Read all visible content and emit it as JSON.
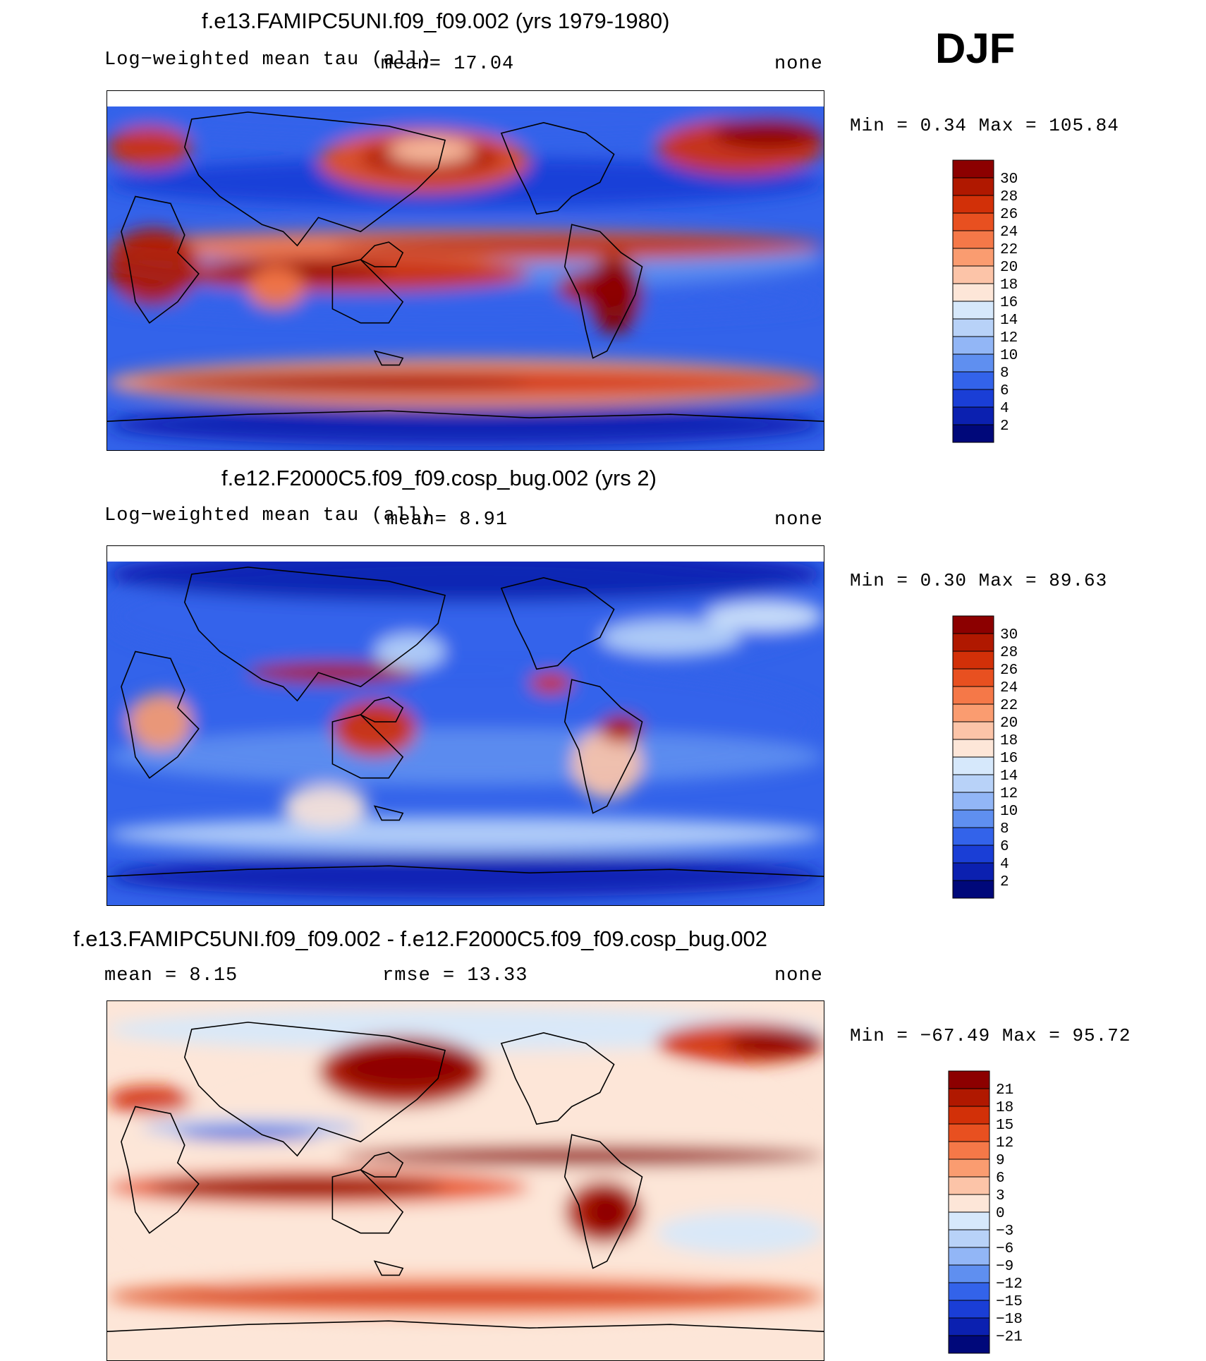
{
  "season": "DJF",
  "panels": [
    {
      "id": "top",
      "title": "f.e13.FAMIPC5UNI.f09_f09.002 (yrs 1979-1980)",
      "left_label": "Log−weighted mean tau (all)",
      "mean_label": "mean=   17.04",
      "right_label": "none",
      "minmax": "Min =    0.34 Max = 105.84",
      "colorbar": {
        "labels": [
          "30",
          "28",
          "26",
          "24",
          "22",
          "20",
          "18",
          "16",
          "14",
          "12",
          "10",
          "8",
          "6",
          "4",
          "2"
        ],
        "colors": [
          "#8c0000",
          "#b01800",
          "#d23008",
          "#e85020",
          "#f57848",
          "#fa9c70",
          "#fcc4a8",
          "#fde6d8",
          "#d6e8fb",
          "#b8d2f8",
          "#92b6f6",
          "#5f8ff0",
          "#3363ea",
          "#1a3ed6",
          "#0b20b0",
          "#00087a"
        ]
      },
      "palette": "full"
    },
    {
      "id": "middle",
      "title": "f.e12.F2000C5.f09_f09.cosp_bug.002 (yrs 2)",
      "left_label": "Log−weighted mean tau (all)",
      "mean_label": "mean=    8.91",
      "right_label": "none",
      "minmax": "Min =    0.30 Max =   89.63",
      "colorbar": {
        "labels": [
          "30",
          "28",
          "26",
          "24",
          "22",
          "20",
          "18",
          "16",
          "14",
          "12",
          "10",
          "8",
          "6",
          "4",
          "2"
        ],
        "colors": [
          "#8c0000",
          "#b01800",
          "#d23008",
          "#e85020",
          "#f57848",
          "#fa9c70",
          "#fcc4a8",
          "#fde6d8",
          "#d6e8fb",
          "#b8d2f8",
          "#92b6f6",
          "#5f8ff0",
          "#3363ea",
          "#1a3ed6",
          "#0b20b0",
          "#00087a"
        ]
      },
      "palette": "blue"
    },
    {
      "id": "bottom",
      "title": "f.e13.FAMIPC5UNI.f09_f09.002 - f.e12.F2000C5.f09_f09.cosp_bug.002",
      "left_label": "mean =    8.15",
      "mean_label": "rmse =   13.33",
      "right_label": "none",
      "minmax": "Min = −67.49 Max =   95.72",
      "colorbar": {
        "labels": [
          "21",
          "18",
          "15",
          "12",
          "9",
          "6",
          "3",
          "0",
          "−3",
          "−6",
          "−9",
          "−12",
          "−15",
          "−18",
          "−21"
        ],
        "colors": [
          "#8c0000",
          "#b01800",
          "#d23008",
          "#e85020",
          "#f57848",
          "#fa9c70",
          "#fcc4a8",
          "#fde6d8",
          "#d6e8fb",
          "#b8d2f8",
          "#92b6f6",
          "#5f8ff0",
          "#3363ea",
          "#1a3ed6",
          "#0b20b0",
          "#00087a"
        ]
      },
      "palette": "diff"
    }
  ]
}
